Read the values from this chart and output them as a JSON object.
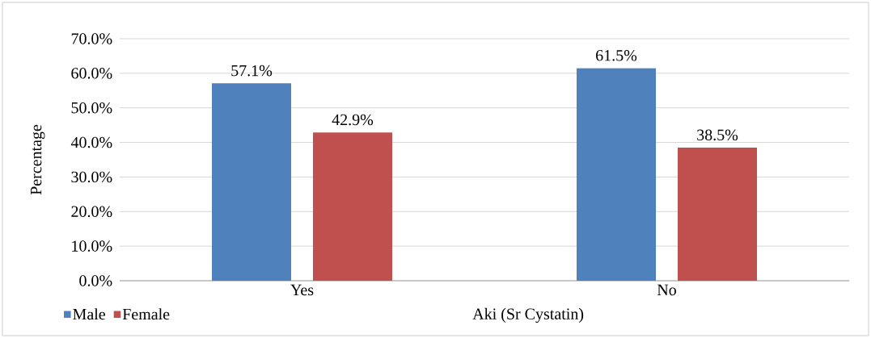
{
  "chart_data": {
    "type": "bar",
    "xlabel": "Aki (Sr Cystatin)",
    "ylabel": "Percentage",
    "categories": [
      "Yes",
      "No"
    ],
    "series": [
      {
        "name": "Male",
        "color": "#4f81bd",
        "values": [
          57.1,
          61.5
        ],
        "value_labels": [
          "57.1%",
          "61.5%"
        ]
      },
      {
        "name": "Female",
        "color": "#c0504d",
        "values": [
          42.9,
          38.5
        ],
        "value_labels": [
          "42.9%",
          "38.5%"
        ]
      }
    ],
    "ylim": [
      0,
      70
    ],
    "yticks": [
      {
        "value": 0,
        "label": "0.0%"
      },
      {
        "value": 10,
        "label": "10.0%"
      },
      {
        "value": 20,
        "label": "20.0%"
      },
      {
        "value": 30,
        "label": "30.0%"
      },
      {
        "value": 40,
        "label": "40.0%"
      },
      {
        "value": 50,
        "label": "50.0%"
      },
      {
        "value": 60,
        "label": "60.0%"
      },
      {
        "value": 70,
        "label": "70.0%"
      }
    ],
    "grid": "y",
    "legend": "bottom left"
  }
}
